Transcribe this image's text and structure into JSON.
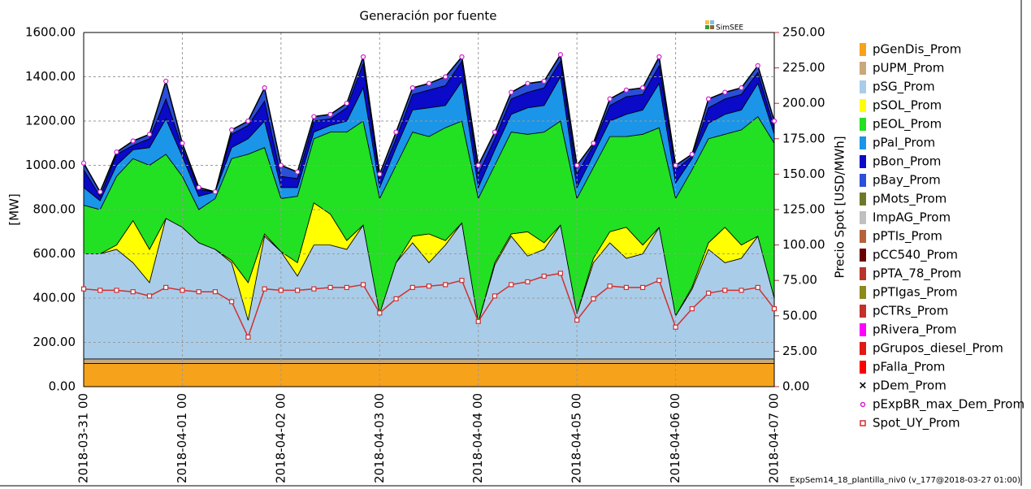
{
  "chart_data": {
    "type": "area",
    "stacked": true,
    "title": "Generación por fuente",
    "ylabel": "[MW]",
    "y2label": "Precio Spot [USD/MWh]",
    "logo": "SimSEE",
    "footer": "ExpSem14_18_plantilla_niv0 (v_177@2018-03-27 01:00)",
    "grid": true,
    "legend": "right",
    "x": [
      "2018-03-31 00",
      "2018-03-31 04",
      "2018-03-31 08",
      "2018-03-31 12",
      "2018-03-31 16",
      "2018-03-31 20",
      "2018-04-01 00",
      "2018-04-01 04",
      "2018-04-01 08",
      "2018-04-01 12",
      "2018-04-01 16",
      "2018-04-01 20",
      "2018-04-02 00",
      "2018-04-02 04",
      "2018-04-02 08",
      "2018-04-02 12",
      "2018-04-02 16",
      "2018-04-02 20",
      "2018-04-03 00",
      "2018-04-03 04",
      "2018-04-03 08",
      "2018-04-03 12",
      "2018-04-03 16",
      "2018-04-03 20",
      "2018-04-04 00",
      "2018-04-04 04",
      "2018-04-04 08",
      "2018-04-04 12",
      "2018-04-04 16",
      "2018-04-04 20",
      "2018-04-05 00",
      "2018-04-05 04",
      "2018-04-05 08",
      "2018-04-05 12",
      "2018-04-05 16",
      "2018-04-05 20",
      "2018-04-06 00",
      "2018-04-06 04",
      "2018-04-06 08",
      "2018-04-06 12",
      "2018-04-06 16",
      "2018-04-06 20",
      "2018-04-07 00"
    ],
    "xlim": [
      "2018-03-31 00",
      "2018-04-07 00"
    ],
    "xticks": [
      "2018-03-31 00",
      "2018-04-01 00",
      "2018-04-02 00",
      "2018-04-03 00",
      "2018-04-04 00",
      "2018-04-05 00",
      "2018-04-06 00",
      "2018-04-07 00"
    ],
    "ylim": [
      0,
      1600
    ],
    "yticks": [
      {
        "value": 0,
        "label": "0.00"
      },
      {
        "value": 200,
        "label": "200.00"
      },
      {
        "value": 400,
        "label": "400.00"
      },
      {
        "value": 600,
        "label": "600.00"
      },
      {
        "value": 800,
        "label": "800.00"
      },
      {
        "value": 1000,
        "label": "1000.00"
      },
      {
        "value": 1200,
        "label": "1200.00"
      },
      {
        "value": 1400,
        "label": "1400.00"
      },
      {
        "value": 1600,
        "label": "1600.00"
      }
    ],
    "y2lim": [
      0,
      250
    ],
    "y2ticks": [
      {
        "value": 0,
        "label": "0.00"
      },
      {
        "value": 25,
        "label": "25.00"
      },
      {
        "value": 50,
        "label": "50.00"
      },
      {
        "value": 75,
        "label": "75.00"
      },
      {
        "value": 100,
        "label": "100.00"
      },
      {
        "value": 125,
        "label": "125.00"
      },
      {
        "value": 150,
        "label": "150.00"
      },
      {
        "value": 175,
        "label": "175.00"
      },
      {
        "value": 200,
        "label": "200.00"
      },
      {
        "value": 225,
        "label": "225.00"
      },
      {
        "value": 250,
        "label": "250.00"
      }
    ],
    "series": [
      {
        "name": "pGenDis_Prom",
        "type": "area",
        "color": "#f7a21b",
        "values": [
          105,
          105,
          105,
          105,
          105,
          105,
          105,
          105,
          105,
          105,
          105,
          105,
          105,
          105,
          105,
          105,
          105,
          105,
          105,
          105,
          105,
          105,
          105,
          105,
          105,
          105,
          105,
          105,
          105,
          105,
          105,
          105,
          105,
          105,
          105,
          105,
          105,
          105,
          105,
          105,
          105,
          105,
          105
        ]
      },
      {
        "name": "pUPM_Prom",
        "type": "area",
        "color": "#c9a97a",
        "values": [
          20,
          20,
          20,
          20,
          20,
          20,
          20,
          20,
          20,
          20,
          20,
          20,
          20,
          20,
          20,
          20,
          20,
          20,
          20,
          20,
          20,
          20,
          20,
          20,
          20,
          20,
          20,
          20,
          20,
          20,
          20,
          20,
          20,
          20,
          20,
          20,
          20,
          20,
          20,
          20,
          20,
          20,
          20
        ]
      },
      {
        "name": "pSG_Prom",
        "type": "area",
        "color": "#a9cde9",
        "values": [
          475,
          475,
          495,
          435,
          345,
          635,
          595,
          525,
          495,
          435,
          175,
          555,
          485,
          375,
          515,
          515,
          495,
          605,
          205,
          435,
          525,
          435,
          515,
          615,
          165,
          425,
          555,
          465,
          495,
          605,
          205,
          435,
          525,
          455,
          475,
          595,
          195,
          315,
          495,
          435,
          455,
          555,
          275
        ]
      },
      {
        "name": "pSOL_Prom",
        "type": "area",
        "color": "#ffff00",
        "values": [
          0,
          0,
          20,
          190,
          150,
          0,
          0,
          0,
          0,
          10,
          170,
          10,
          0,
          60,
          190,
          140,
          40,
          0,
          0,
          0,
          30,
          130,
          20,
          0,
          0,
          10,
          10,
          110,
          30,
          0,
          0,
          20,
          50,
          140,
          40,
          0,
          0,
          10,
          30,
          160,
          60,
          0,
          0
        ]
      },
      {
        "name": "pEOL_Prom",
        "type": "area",
        "color": "#22e022",
        "values": [
          220,
          200,
          310,
          280,
          380,
          290,
          230,
          150,
          230,
          460,
          580,
          390,
          240,
          300,
          290,
          370,
          490,
          470,
          520,
          440,
          470,
          440,
          510,
          460,
          560,
          440,
          460,
          440,
          500,
          470,
          520,
          410,
          430,
          410,
          500,
          450,
          530,
          530,
          470,
          420,
          520,
          540,
          700
        ]
      },
      {
        "name": "pPal_Prom",
        "type": "area",
        "color": "#1a95e8",
        "values": [
          80,
          40,
          50,
          40,
          80,
          160,
          90,
          60,
          30,
          50,
          70,
          120,
          50,
          40,
          30,
          30,
          50,
          150,
          50,
          80,
          100,
          130,
          100,
          180,
          50,
          70,
          80,
          120,
          120,
          200,
          50,
          60,
          70,
          100,
          110,
          200,
          70,
          50,
          70,
          90,
          90,
          150,
          40
        ]
      },
      {
        "name": "pBon_Prom",
        "type": "area",
        "color": "#0a0ac8",
        "values": [
          80,
          20,
          50,
          20,
          40,
          90,
          40,
          30,
          0,
          60,
          60,
          90,
          50,
          40,
          50,
          30,
          60,
          110,
          40,
          40,
          70,
          80,
          90,
          90,
          60,
          50,
          70,
          70,
          80,
          70,
          60,
          40,
          70,
          80,
          70,
          80,
          60,
          10,
          70,
          70,
          70,
          50,
          30
        ]
      },
      {
        "name": "pBay_Prom",
        "type": "area",
        "color": "#2a4fd8",
        "values": [
          30,
          20,
          10,
          20,
          20,
          80,
          20,
          10,
          0,
          20,
          20,
          60,
          50,
          30,
          20,
          20,
          20,
          30,
          20,
          30,
          30,
          30,
          40,
          20,
          40,
          30,
          30,
          40,
          30,
          30,
          40,
          10,
          30,
          30,
          30,
          40,
          20,
          10,
          40,
          30,
          30,
          30,
          30
        ]
      },
      {
        "name": "pMots_Prom",
        "type": "area",
        "color": "#6b7a2a",
        "values": [
          0,
          0,
          0,
          0,
          0,
          0,
          0,
          0,
          0,
          0,
          0,
          0,
          0,
          0,
          0,
          0,
          0,
          0,
          0,
          0,
          0,
          0,
          0,
          0,
          0,
          0,
          0,
          0,
          0,
          0,
          0,
          0,
          0,
          0,
          0,
          0,
          0,
          0,
          0,
          0,
          0,
          0,
          0
        ]
      },
      {
        "name": "ImpAG_Prom",
        "type": "area",
        "color": "#c0c0c0",
        "values": [
          0,
          0,
          0,
          0,
          0,
          0,
          0,
          0,
          0,
          0,
          0,
          0,
          0,
          0,
          0,
          0,
          0,
          0,
          0,
          0,
          0,
          0,
          0,
          0,
          0,
          0,
          0,
          0,
          0,
          0,
          0,
          0,
          0,
          0,
          0,
          0,
          0,
          0,
          0,
          0,
          0,
          0,
          0
        ]
      },
      {
        "name": "pPTIs_Prom",
        "type": "area",
        "color": "#b5623a",
        "values": [
          0,
          0,
          0,
          0,
          0,
          0,
          0,
          0,
          0,
          0,
          0,
          0,
          0,
          0,
          0,
          0,
          0,
          0,
          0,
          0,
          0,
          0,
          0,
          0,
          0,
          0,
          0,
          0,
          0,
          0,
          0,
          0,
          0,
          0,
          0,
          0,
          0,
          0,
          0,
          0,
          0,
          0,
          0
        ]
      },
      {
        "name": "pCC540_Prom",
        "type": "area",
        "color": "#6b0000",
        "values": [
          0,
          0,
          0,
          0,
          0,
          0,
          0,
          0,
          0,
          0,
          0,
          0,
          0,
          0,
          0,
          0,
          0,
          0,
          0,
          0,
          0,
          0,
          0,
          0,
          0,
          0,
          0,
          0,
          0,
          0,
          0,
          0,
          0,
          0,
          0,
          0,
          0,
          0,
          0,
          0,
          0,
          0,
          0
        ]
      },
      {
        "name": "pPTA_78_Prom",
        "type": "area",
        "color": "#b8342a",
        "values": [
          0,
          0,
          0,
          0,
          0,
          0,
          0,
          0,
          0,
          0,
          0,
          0,
          0,
          0,
          0,
          0,
          0,
          0,
          0,
          0,
          0,
          0,
          0,
          0,
          0,
          0,
          0,
          0,
          0,
          0,
          0,
          0,
          0,
          0,
          0,
          0,
          0,
          0,
          0,
          0,
          0,
          0,
          0
        ]
      },
      {
        "name": "pPTIgas_Prom",
        "type": "area",
        "color": "#8b8b1a",
        "values": [
          0,
          0,
          0,
          0,
          0,
          0,
          0,
          0,
          0,
          0,
          0,
          0,
          0,
          0,
          0,
          0,
          0,
          0,
          0,
          0,
          0,
          0,
          0,
          0,
          0,
          0,
          0,
          0,
          0,
          0,
          0,
          0,
          0,
          0,
          0,
          0,
          0,
          0,
          0,
          0,
          0,
          0,
          0
        ]
      },
      {
        "name": "pCTRs_Prom",
        "type": "area",
        "color": "#c4302a",
        "values": [
          0,
          0,
          0,
          0,
          0,
          0,
          0,
          0,
          0,
          0,
          0,
          0,
          0,
          0,
          0,
          0,
          0,
          0,
          0,
          0,
          0,
          0,
          0,
          0,
          0,
          0,
          0,
          0,
          0,
          0,
          0,
          0,
          0,
          0,
          0,
          0,
          0,
          0,
          0,
          0,
          0,
          0,
          0
        ]
      },
      {
        "name": "pRivera_Prom",
        "type": "area",
        "color": "#ff00ff",
        "values": [
          0,
          0,
          0,
          0,
          0,
          0,
          0,
          0,
          0,
          0,
          0,
          0,
          0,
          0,
          0,
          0,
          0,
          0,
          0,
          0,
          0,
          0,
          0,
          0,
          0,
          0,
          0,
          0,
          0,
          0,
          0,
          0,
          0,
          0,
          0,
          0,
          0,
          0,
          0,
          0,
          0,
          0,
          0
        ]
      },
      {
        "name": "pGrupos_diesel_Prom",
        "type": "area",
        "color": "#e01818",
        "values": [
          0,
          0,
          0,
          0,
          0,
          0,
          0,
          0,
          0,
          0,
          0,
          0,
          0,
          0,
          0,
          0,
          0,
          0,
          0,
          0,
          0,
          0,
          0,
          0,
          0,
          0,
          0,
          0,
          0,
          0,
          0,
          0,
          0,
          0,
          0,
          0,
          0,
          0,
          0,
          0,
          0,
          0,
          0
        ]
      },
      {
        "name": "pFalla_Prom",
        "type": "area",
        "color": "#ff0000",
        "values": [
          0,
          0,
          0,
          0,
          0,
          0,
          0,
          0,
          0,
          0,
          0,
          0,
          0,
          0,
          0,
          0,
          0,
          0,
          0,
          0,
          0,
          0,
          0,
          0,
          0,
          0,
          0,
          0,
          0,
          0,
          0,
          0,
          0,
          0,
          0,
          0,
          0,
          0,
          0,
          0,
          0,
          0,
          0
        ]
      },
      {
        "name": "pDem_Prom",
        "type": "line",
        "marker": "x",
        "color": "#000000",
        "values": [
          1010,
          880,
          1060,
          1110,
          1140,
          1380,
          1100,
          900,
          880,
          1160,
          1200,
          1350,
          1000,
          970,
          1220,
          1230,
          1280,
          1490,
          960,
          1150,
          1350,
          1370,
          1400,
          1490,
          1000,
          1150,
          1330,
          1370,
          1380,
          1500,
          1000,
          1100,
          1300,
          1340,
          1350,
          1490,
          1000,
          1050,
          1300,
          1330,
          1350,
          1450,
          1200
        ]
      },
      {
        "name": "pExpBR_max_Dem_Prom",
        "type": "scatter",
        "marker": "circle",
        "color": "#d020d0",
        "values": [
          1010,
          880,
          1060,
          1110,
          1140,
          1380,
          1100,
          900,
          880,
          1160,
          1200,
          1350,
          1000,
          970,
          1220,
          1230,
          1280,
          1490,
          960,
          1150,
          1350,
          1370,
          1400,
          1490,
          1000,
          1150,
          1330,
          1370,
          1380,
          1500,
          1000,
          1100,
          1300,
          1340,
          1350,
          1490,
          1000,
          1050,
          1300,
          1330,
          1350,
          1450,
          1200
        ]
      },
      {
        "name": "Spot_UY_Prom",
        "type": "line",
        "marker": "square",
        "axis": "y2",
        "color": "#d03030",
        "values": [
          69,
          68,
          68,
          67,
          64,
          70,
          68,
          67,
          67,
          60,
          35,
          69,
          68,
          68,
          69,
          70,
          70,
          72,
          52,
          62,
          70,
          71,
          72,
          75,
          46,
          64,
          72,
          74,
          78,
          80,
          47,
          62,
          71,
          70,
          70,
          75,
          42,
          55,
          66,
          68,
          68,
          70,
          55
        ]
      }
    ]
  }
}
